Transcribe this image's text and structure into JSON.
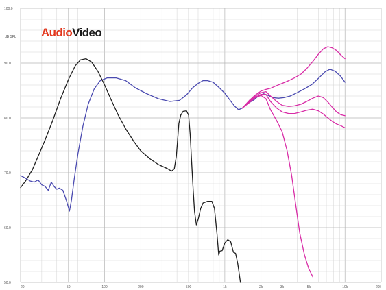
{
  "logo": {
    "part1": "Audio",
    "part2": "Video",
    "color1": "#e2361c",
    "color2": "#1a1a1a"
  },
  "chart_data": {
    "type": "line",
    "title": "",
    "xlabel": "",
    "ylabel": "dB SPL",
    "x_scale": "log",
    "xlim": [
      20,
      20000
    ],
    "ylim": [
      50,
      100
    ],
    "grid": true,
    "yticks": [
      {
        "value": 100,
        "label": "100.0"
      },
      {
        "value": 90,
        "label": "90.0"
      },
      {
        "value": 80,
        "label": "80.0"
      },
      {
        "value": 70,
        "label": "70.0"
      },
      {
        "value": 60,
        "label": "60.0"
      },
      {
        "value": 50,
        "label": "50.0"
      }
    ],
    "xticks": [
      {
        "value": 20,
        "label": "20"
      },
      {
        "value": 50,
        "label": "50"
      },
      {
        "value": 100,
        "label": "100"
      },
      {
        "value": 200,
        "label": "200"
      },
      {
        "value": 500,
        "label": "500"
      },
      {
        "value": 1000,
        "label": "1k"
      },
      {
        "value": 2000,
        "label": "2k"
      },
      {
        "value": 3000,
        "label": "3k"
      },
      {
        "value": 5000,
        "label": "5k"
      },
      {
        "value": 10000,
        "label": "10k"
      },
      {
        "value": 20000,
        "label": "20k"
      }
    ],
    "series": [
      {
        "color": "#1e1e1e",
        "points": [
          [
            20,
            67.3
          ],
          [
            22,
            68.5
          ],
          [
            25,
            70.5
          ],
          [
            28,
            73
          ],
          [
            32,
            76
          ],
          [
            37,
            79.5
          ],
          [
            43,
            83.5
          ],
          [
            50,
            87
          ],
          [
            57,
            89.5
          ],
          [
            63,
            90.6
          ],
          [
            70,
            90.8
          ],
          [
            78,
            90.2
          ],
          [
            88,
            88.5
          ],
          [
            100,
            86
          ],
          [
            115,
            83
          ],
          [
            130,
            80.5
          ],
          [
            150,
            78
          ],
          [
            175,
            75.7
          ],
          [
            200,
            74
          ],
          [
            240,
            72.5
          ],
          [
            280,
            71.5
          ],
          [
            330,
            70.8
          ],
          [
            360,
            70.3
          ],
          [
            380,
            70.7
          ],
          [
            395,
            73
          ],
          [
            405,
            76
          ],
          [
            415,
            79
          ],
          [
            430,
            80.5
          ],
          [
            450,
            81.2
          ],
          [
            480,
            81.3
          ],
          [
            500,
            80.5
          ],
          [
            515,
            77
          ],
          [
            530,
            72
          ],
          [
            545,
            67
          ],
          [
            560,
            63
          ],
          [
            580,
            60.5
          ],
          [
            600,
            61.5
          ],
          [
            630,
            63.5
          ],
          [
            660,
            64.5
          ],
          [
            720,
            64.8
          ],
          [
            780,
            64.8
          ],
          [
            820,
            63.5
          ],
          [
            860,
            59
          ],
          [
            890,
            55
          ],
          [
            910,
            55.7
          ],
          [
            950,
            55.8
          ],
          [
            1000,
            57.2
          ],
          [
            1060,
            57.8
          ],
          [
            1120,
            57.4
          ],
          [
            1180,
            55.5
          ],
          [
            1230,
            55.3
          ],
          [
            1280,
            53.5
          ],
          [
            1320,
            51.5
          ],
          [
            1350,
            50
          ]
        ]
      },
      {
        "color": "#4a4ab0",
        "points": [
          [
            20,
            69.5
          ],
          [
            22,
            69
          ],
          [
            24,
            68.5
          ],
          [
            26,
            68.3
          ],
          [
            28,
            68.7
          ],
          [
            30,
            67.8
          ],
          [
            32,
            67.5
          ],
          [
            34,
            66.8
          ],
          [
            36,
            68.3
          ],
          [
            38,
            67.5
          ],
          [
            40,
            67
          ],
          [
            42,
            67.2
          ],
          [
            45,
            66.8
          ],
          [
            48,
            65
          ],
          [
            51,
            63
          ],
          [
            53,
            65
          ],
          [
            56,
            69
          ],
          [
            60,
            73.5
          ],
          [
            66,
            78.5
          ],
          [
            73,
            82.5
          ],
          [
            82,
            85.3
          ],
          [
            92,
            86.8
          ],
          [
            105,
            87.3
          ],
          [
            125,
            87.3
          ],
          [
            150,
            86.8
          ],
          [
            180,
            85.5
          ],
          [
            220,
            84.5
          ],
          [
            280,
            83.5
          ],
          [
            350,
            83
          ],
          [
            420,
            83.2
          ],
          [
            480,
            84.2
          ],
          [
            540,
            85.5
          ],
          [
            600,
            86.3
          ],
          [
            660,
            86.8
          ],
          [
            720,
            86.8
          ],
          [
            800,
            86.5
          ],
          [
            900,
            85.5
          ],
          [
            1000,
            84.5
          ],
          [
            1100,
            83.3
          ],
          [
            1200,
            82.2
          ],
          [
            1300,
            81.5
          ],
          [
            1400,
            81.8
          ],
          [
            1500,
            82.4
          ],
          [
            1600,
            82.8
          ],
          [
            1750,
            83.3
          ],
          [
            1900,
            84
          ],
          [
            2100,
            84.4
          ],
          [
            2300,
            84.1
          ],
          [
            2500,
            83.7
          ],
          [
            2800,
            83.6
          ],
          [
            3100,
            83.7
          ],
          [
            3500,
            84
          ],
          [
            4000,
            84.6
          ],
          [
            4600,
            85.3
          ],
          [
            5300,
            86.1
          ],
          [
            6000,
            87.2
          ],
          [
            6800,
            88.4
          ],
          [
            7500,
            88.9
          ],
          [
            8300,
            88.5
          ],
          [
            9200,
            87.6
          ],
          [
            10000,
            86.5
          ]
        ]
      },
      {
        "color": "#d82ca6",
        "points": [
          [
            1400,
            81.8
          ],
          [
            1600,
            83.2
          ],
          [
            1800,
            84.2
          ],
          [
            2000,
            84.9
          ],
          [
            2200,
            85.2
          ],
          [
            2400,
            85.4
          ],
          [
            2700,
            85.9
          ],
          [
            3000,
            86.3
          ],
          [
            3400,
            86.8
          ],
          [
            3800,
            87.3
          ],
          [
            4300,
            88
          ],
          [
            4800,
            89
          ],
          [
            5400,
            90.3
          ],
          [
            6000,
            91.6
          ],
          [
            6600,
            92.6
          ],
          [
            7200,
            93
          ],
          [
            7800,
            92.8
          ],
          [
            8500,
            92.3
          ],
          [
            9200,
            91.5
          ],
          [
            10000,
            90.8
          ]
        ]
      },
      {
        "color": "#d82ca6",
        "points": [
          [
            1400,
            81.8
          ],
          [
            1600,
            83
          ],
          [
            1800,
            84
          ],
          [
            2000,
            84.6
          ],
          [
            2200,
            84.8
          ],
          [
            2400,
            84
          ],
          [
            2700,
            83
          ],
          [
            3000,
            82.3
          ],
          [
            3400,
            82.1
          ],
          [
            3800,
            82.2
          ],
          [
            4300,
            82.5
          ],
          [
            4800,
            83
          ],
          [
            5400,
            83.6
          ],
          [
            6000,
            84
          ],
          [
            6600,
            83.7
          ],
          [
            7200,
            82.9
          ],
          [
            7800,
            82
          ],
          [
            8500,
            81.1
          ],
          [
            9200,
            80.6
          ],
          [
            10000,
            80.4
          ]
        ]
      },
      {
        "color": "#d82ca6",
        "points": [
          [
            1400,
            81.8
          ],
          [
            1600,
            82.9
          ],
          [
            1800,
            83.8
          ],
          [
            2000,
            84.3
          ],
          [
            2200,
            84.3
          ],
          [
            2400,
            83
          ],
          [
            2700,
            81.8
          ],
          [
            3000,
            81.1
          ],
          [
            3400,
            80.8
          ],
          [
            3800,
            80.8
          ],
          [
            4300,
            81.1
          ],
          [
            4800,
            81.4
          ],
          [
            5400,
            81.6
          ],
          [
            6000,
            81.3
          ],
          [
            6600,
            80.7
          ],
          [
            7200,
            80
          ],
          [
            7800,
            79.4
          ],
          [
            8500,
            78.9
          ],
          [
            9200,
            78.6
          ],
          [
            10000,
            78.2
          ]
        ]
      },
      {
        "color": "#d82ca6",
        "points": [
          [
            1400,
            81.8
          ],
          [
            1600,
            82.8
          ],
          [
            1800,
            83.7
          ],
          [
            2000,
            84.1
          ],
          [
            2200,
            83.5
          ],
          [
            2400,
            81.5
          ],
          [
            2700,
            79.5
          ],
          [
            3000,
            77.5
          ],
          [
            3300,
            74
          ],
          [
            3600,
            69.5
          ],
          [
            3900,
            64
          ],
          [
            4200,
            59
          ],
          [
            4600,
            55
          ],
          [
            5000,
            52.5
          ],
          [
            5400,
            51
          ]
        ]
      }
    ]
  }
}
